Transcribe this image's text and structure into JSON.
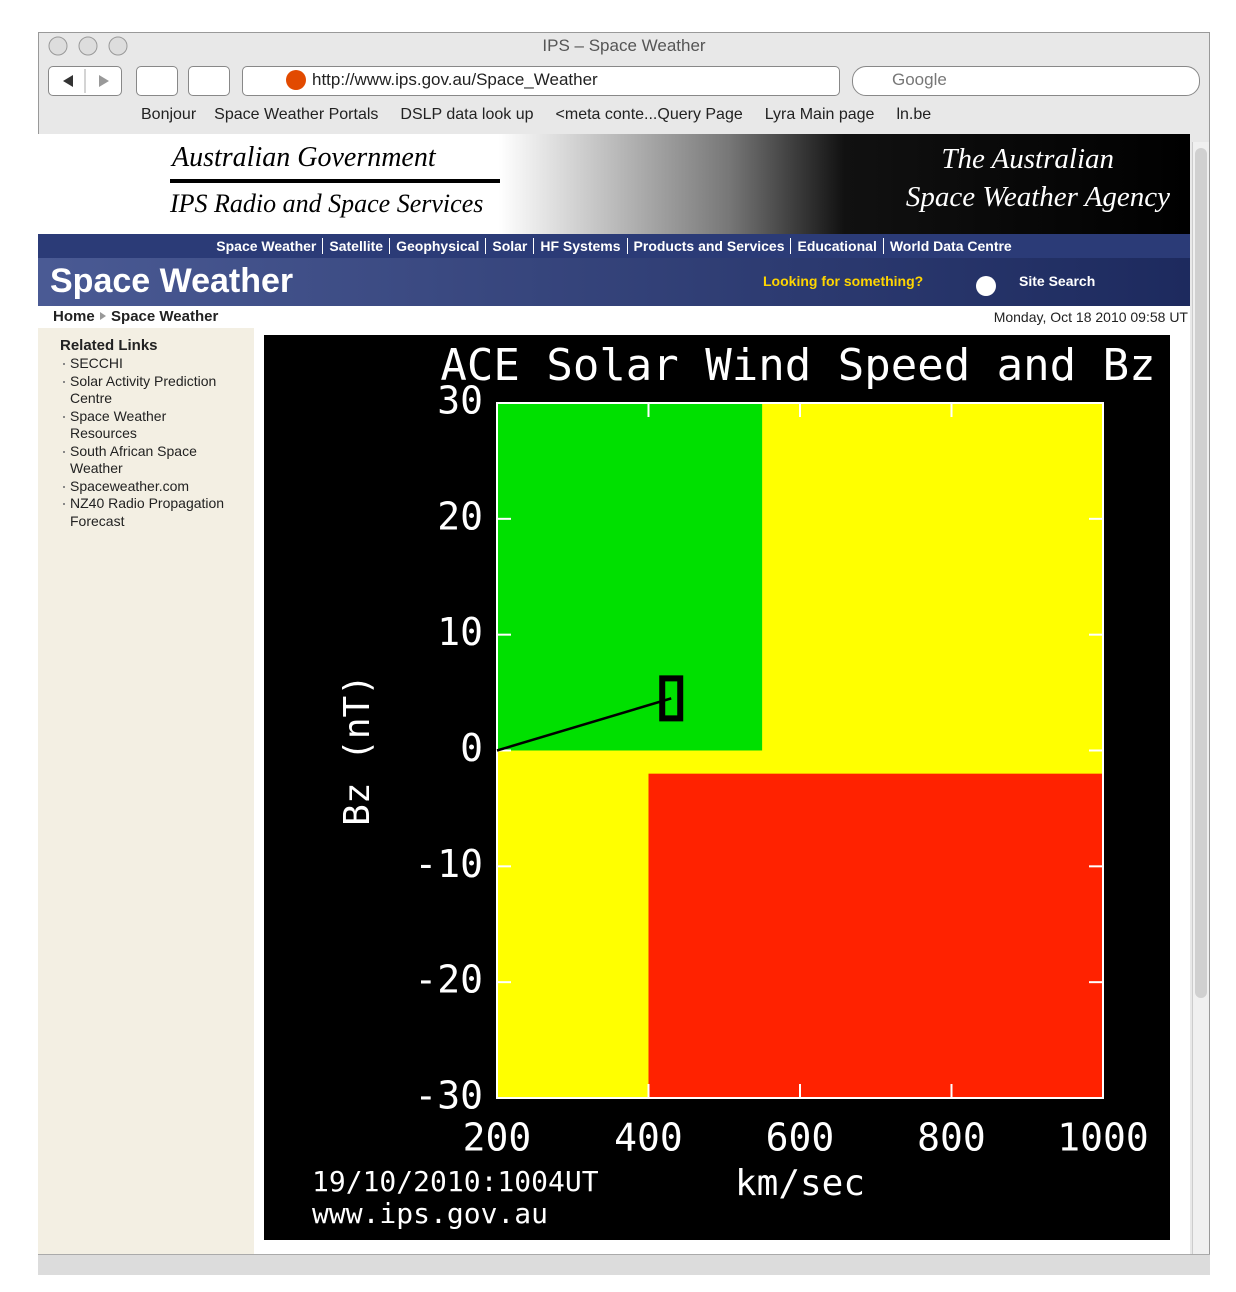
{
  "window": {
    "title": "IPS – Space Weather",
    "url": "http://www.ips.gov.au/Space_Weather",
    "search": "Google"
  },
  "bookmarks": [
    "Bonjour",
    "Space Weather Portals",
    "DSLP data look up",
    "<meta conte...Query Page",
    "Lyra Main page",
    "ln.be"
  ],
  "header": {
    "gov": "Australian Government",
    "org": "IPS Radio and Space Services",
    "agency1": "The Australian",
    "agency2": "Space Weather Agency"
  },
  "nav": [
    "Space Weather",
    "Satellite",
    "Geophysical",
    "Solar",
    "HF Systems",
    "Products and Services",
    "Educational",
    "World Data Centre"
  ],
  "banner": {
    "title": "Space Weather",
    "prompt": "Looking for something?",
    "search": "Site Search"
  },
  "breadcrumb": {
    "home": "Home",
    "current": "Space Weather",
    "date": "Monday, Oct 18 2010 09:58 UT"
  },
  "sidebar": {
    "heading": "Related Links",
    "links": [
      "SECCHI",
      "Solar Activity Prediction Centre",
      "Space Weather Resources",
      "South African Space Weather",
      "Spaceweather.com",
      "NZ40 Radio Propagation Forecast"
    ]
  },
  "chart_data": {
    "type": "line",
    "title": "ACE Solar Wind Speed and Bz",
    "y_label": "Bz (nT)",
    "x_label": "km/sec",
    "annotations": [
      "19/10/2010:1004UT",
      "www.ips.gov.au"
    ],
    "xlim": [
      200,
      1000
    ],
    "ylim": [
      -30,
      30
    ],
    "xticks": [
      200,
      400,
      600,
      800,
      1000
    ],
    "yticks": [
      -30,
      -20,
      -10,
      0,
      10,
      20,
      30
    ],
    "background": "#ffff00",
    "regions": [
      {
        "color": "#00e000",
        "x": [
          200,
          550
        ],
        "y": [
          0,
          30
        ]
      },
      {
        "color": "#ff2200",
        "x": [
          400,
          1000
        ],
        "y": [
          -30,
          -2
        ]
      }
    ],
    "series": [
      {
        "color": "#000000",
        "x": [
          200,
          430
        ],
        "values": [
          0,
          4.5
        ]
      }
    ]
  }
}
